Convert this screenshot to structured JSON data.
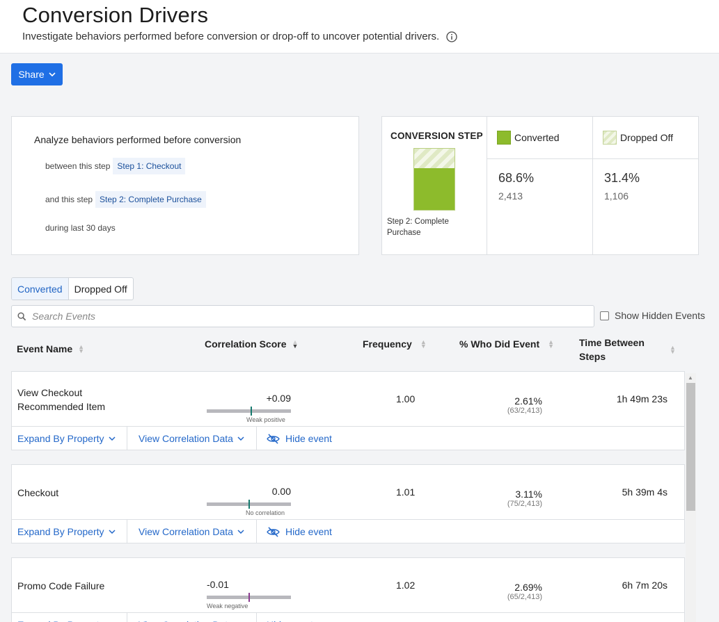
{
  "header": {
    "title": "Conversion Drivers",
    "subtitle": "Investigate behaviors performed before conversion or drop-off to uncover potential drivers."
  },
  "toolbar": {
    "share_label": "Share"
  },
  "analyze": {
    "heading": "Analyze behaviors performed before conversion",
    "between_label": "between this step",
    "from_step": "Step 1: Checkout",
    "and_label": "and this step",
    "to_step": "Step 2: Complete Purchase",
    "period": "during last 30 days"
  },
  "conversion": {
    "step_label": "CONVERSION STEP",
    "step_name": "Step 2: Complete Purchase",
    "converted_fraction": 0.686,
    "converted": {
      "label": "Converted",
      "pct": "68.6%",
      "count": "2,413"
    },
    "dropped": {
      "label": "Dropped Off",
      "pct": "31.4%",
      "count": "1,106"
    },
    "colors": {
      "converted": "#8dbb2c",
      "dropped": "#dfe9c4"
    }
  },
  "tabs": [
    {
      "label": "Converted",
      "active": true
    },
    {
      "label": "Dropped Off",
      "active": false
    }
  ],
  "search": {
    "placeholder": "Search Events",
    "value": ""
  },
  "show_hidden_label": "Show Hidden Events",
  "columns": {
    "event_name": "Event Name",
    "correlation": "Correlation Score",
    "frequency": "Frequency",
    "who": "% Who Did Event",
    "time": "Time Between Steps"
  },
  "actions": {
    "expand": "Expand By Property",
    "view": "View Correlation Data",
    "hide": "Hide event"
  },
  "events": [
    {
      "name": "View Checkout Recommended Item",
      "score": "+0.09",
      "score_value": 0.09,
      "score_caption": "Weak positive",
      "frequency": "1.00",
      "pct": "2.61%",
      "fraction": "(63/2,413)",
      "time": "1h 49m 23s"
    },
    {
      "name": "Checkout",
      "score": "0.00",
      "score_value": 0.0,
      "score_caption": "No correlation",
      "frequency": "1.01",
      "pct": "3.11%",
      "fraction": "(75/2,413)",
      "time": "5h 39m 4s"
    },
    {
      "name": "Promo Code Failure",
      "score": "-0.01",
      "score_value": -0.01,
      "score_caption": "Weak negative",
      "frequency": "1.02",
      "pct": "2.69%",
      "fraction": "(65/2,413)",
      "time": "6h 7m 20s"
    }
  ]
}
